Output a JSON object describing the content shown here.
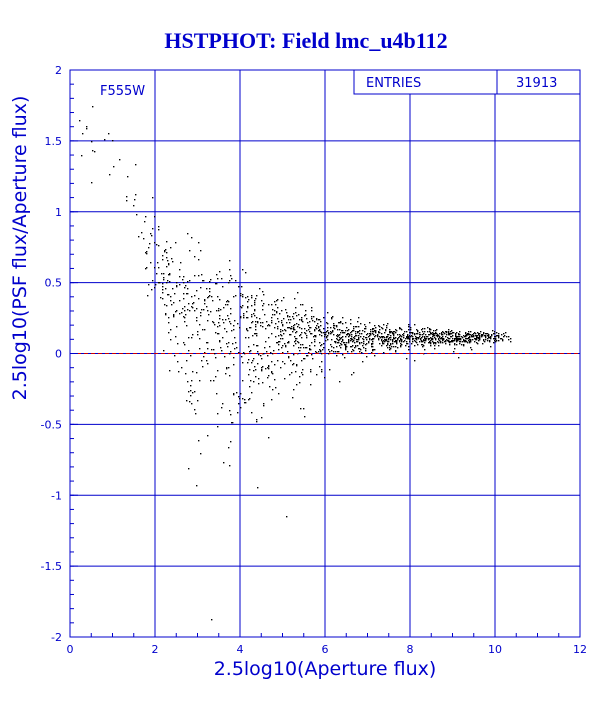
{
  "chart_data": {
    "type": "scatter",
    "title": "HSTPHOT: Field lmc_u4b112",
    "xlabel": "2.5log10(Aperture flux)",
    "ylabel": "2.5log10(PSF flux/Aperture flux)",
    "filter_label": "F555W",
    "stats": {
      "label": "ENTRIES",
      "value": "31913"
    },
    "xlim": [
      0,
      12
    ],
    "ylim": [
      -2,
      2
    ],
    "xticks": [
      "0",
      "2",
      "4",
      "6",
      "8",
      "10",
      "12"
    ],
    "yticks": [
      "-2",
      "-1.5",
      "-1",
      "-0.5",
      "0",
      "0.5",
      "1",
      "1.5",
      "2"
    ],
    "grid": true,
    "reference_line": {
      "y": 0,
      "color": "#cc0000",
      "style": "dashed"
    },
    "colors": {
      "axis": "#0000cc",
      "grid": "#0000cc",
      "points": "#000000",
      "reference": "#cc0000"
    },
    "series": [
      {
        "points_count": 31913,
        "trend_ridge": [
          [
            0.5,
            1.6
          ],
          [
            1.0,
            1.35
          ],
          [
            1.5,
            1.05
          ],
          [
            2.0,
            0.65
          ],
          [
            2.5,
            0.38
          ],
          [
            3.0,
            0.25
          ],
          [
            4.0,
            0.18
          ],
          [
            5.0,
            0.15
          ],
          [
            6.0,
            0.13
          ],
          [
            7.0,
            0.12
          ],
          [
            8.0,
            0.12
          ],
          [
            9.0,
            0.12
          ],
          [
            10.0,
            0.12
          ]
        ],
        "spread": [
          [
            0.5,
            0.25
          ],
          [
            1.0,
            0.25
          ],
          [
            1.5,
            0.3
          ],
          [
            2.0,
            0.35
          ],
          [
            2.5,
            0.4
          ],
          [
            3.0,
            0.45
          ],
          [
            3.5,
            0.45
          ],
          [
            4.0,
            0.38
          ],
          [
            5.0,
            0.25
          ],
          [
            6.0,
            0.15
          ],
          [
            7.0,
            0.1
          ],
          [
            8.0,
            0.07
          ],
          [
            9.0,
            0.05
          ],
          [
            10.0,
            0.04
          ]
        ],
        "x_range": [
          0.2,
          10.4
        ]
      }
    ]
  }
}
